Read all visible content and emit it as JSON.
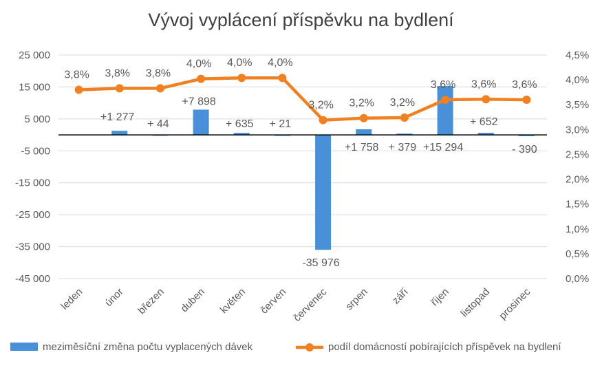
{
  "chart_data": {
    "type": "bar",
    "title": "Vývoj vyplácení příspěvku na bydlení",
    "categories": [
      "leden",
      "únor",
      "březen",
      "duben",
      "květen",
      "červen",
      "červenec",
      "srpen",
      "září",
      "říjen",
      "listopad",
      "prosinec"
    ],
    "series": [
      {
        "name": "meziměsíční změna počtu vyplacených dávek",
        "type": "bar",
        "axis": "left",
        "color": "#4a90d9",
        "values": [
          null,
          1277,
          44,
          7898,
          635,
          21,
          -35976,
          1758,
          379,
          15294,
          652,
          -390
        ],
        "labels": [
          "",
          "+1 277",
          "+ 44",
          "+7 898",
          "+ 635",
          "+ 21",
          "-35 976",
          "+1 758",
          "+ 379",
          "+15 294",
          "+ 652",
          "- 390"
        ]
      },
      {
        "name": "podíl domácností pobírajících příspěvek na bydlení",
        "type": "line",
        "axis": "right",
        "color": "#f08020",
        "values": [
          3.8,
          3.83,
          3.83,
          4.02,
          4.04,
          4.04,
          3.19,
          3.23,
          3.24,
          3.6,
          3.61,
          3.6
        ],
        "labels": [
          "3,8%",
          "3,8%",
          "3,8%",
          "4,0%",
          "4,0%",
          "4,0%",
          "3,2%",
          "3,2%",
          "3,2%",
          "3,6%",
          "3,6%",
          "3,6%"
        ]
      }
    ],
    "y_left": {
      "ylim": [
        -45000,
        25000
      ],
      "ticks": [
        25000,
        15000,
        5000,
        -5000,
        -15000,
        -25000,
        -35000,
        -45000
      ],
      "tick_labels": [
        "25 000",
        "15 000",
        "5 000",
        "-5 000",
        "-15 000",
        "-25 000",
        "-35 000",
        "-45 000"
      ]
    },
    "y_right": {
      "ylim": [
        0,
        4.5
      ],
      "ticks": [
        4.5,
        4.0,
        3.5,
        3.0,
        2.5,
        2.0,
        1.5,
        1.0,
        0.5,
        0.0
      ],
      "tick_labels": [
        "4,5%",
        "4,0%",
        "3,5%",
        "3,0%",
        "2,5%",
        "2,0%",
        "1,5%",
        "1,0%",
        "0,5%",
        "0,0%"
      ]
    },
    "grid": true,
    "legend_position": "bottom",
    "colors": {
      "text": "#595959",
      "grid": "#d9d9d9",
      "zero_line": "#000000"
    }
  }
}
